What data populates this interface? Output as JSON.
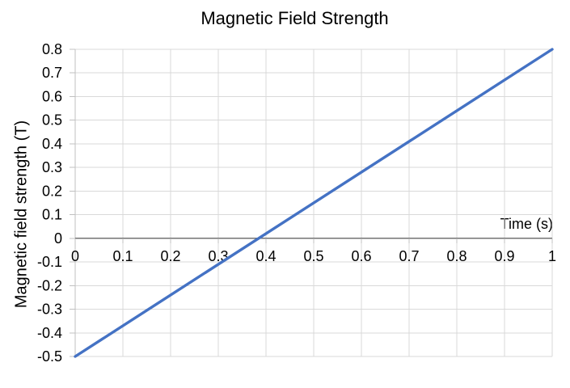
{
  "chart_data": {
    "type": "line",
    "title": "Magnetic Field Strength",
    "xlabel": "Time (s)",
    "ylabel": "Magnetic field strength (T)",
    "xlim": [
      0,
      1
    ],
    "ylim": [
      -0.5,
      0.8
    ],
    "x_ticks": [
      0,
      0.1,
      0.2,
      0.3,
      0.4,
      0.5,
      0.6,
      0.7,
      0.8,
      0.9,
      1
    ],
    "x_tick_labels": [
      "0",
      "0.1",
      "0.2",
      "0.3",
      "0.4",
      "0.5",
      "0.6",
      "0.7",
      "0.8",
      "0.9",
      "1"
    ],
    "y_ticks": [
      0.8,
      0.7,
      0.6,
      0.5,
      0.4,
      0.3,
      0.2,
      0.1,
      0,
      -0.1,
      -0.2,
      -0.3,
      -0.4,
      -0.5
    ],
    "y_tick_labels": [
      "0.8",
      "0.7",
      "0.6",
      "0.5",
      "0.4",
      "0.3",
      "0.2",
      "0.1",
      "0",
      "-0.1",
      "-0.2",
      "-0.3",
      "-0.4",
      "-0.5"
    ],
    "grid": true,
    "legend_position": "none",
    "series": [
      {
        "color": "#4472C4",
        "x": [
          0,
          1
        ],
        "y": [
          -0.5,
          0.8
        ]
      }
    ],
    "colors": {
      "line": "#4472C4",
      "gridline": "#D9D9D9",
      "axis_line": "#737373",
      "tick_line": "#C0C0C0",
      "text": "#000000",
      "background": "#FFFFFF"
    }
  }
}
